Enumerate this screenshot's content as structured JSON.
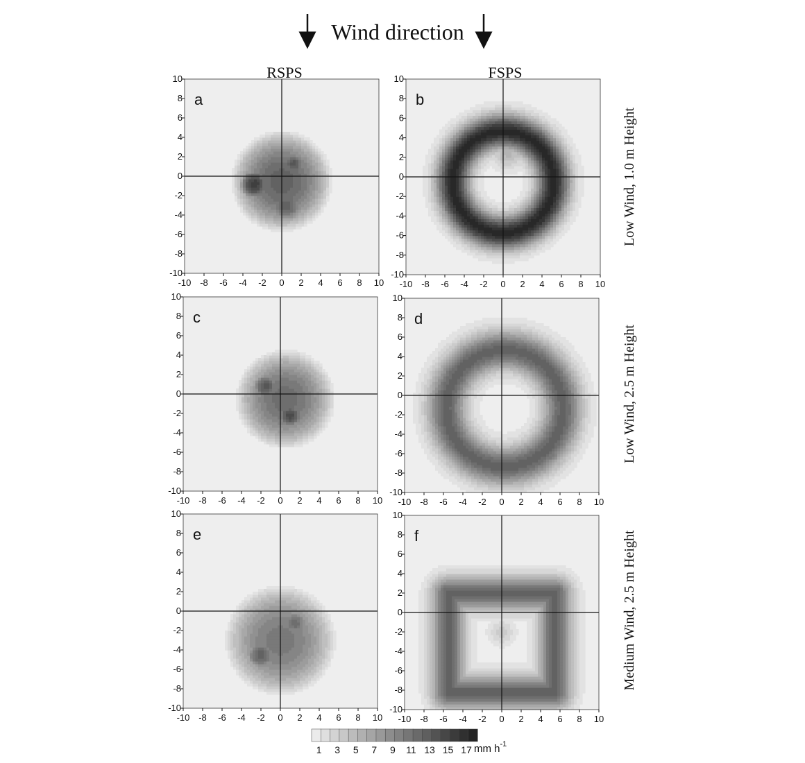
{
  "figure": {
    "header": "Wind direction",
    "column_titles": [
      "RSPS",
      "FSPS"
    ],
    "row_labels": [
      "Low Wind, 1.0 m Height",
      "Low Wind, 2.5 m Height",
      "Medium Wind, 2.5 m Height"
    ],
    "colorbar": {
      "ticks": [
        "1",
        "3",
        "5",
        "7",
        "9",
        "11",
        "13",
        "15",
        "17"
      ],
      "unit": "mm h",
      "unit_exponent": "-1",
      "levels": 18
    }
  },
  "chart_data": [
    {
      "type": "heatmap",
      "panel": "a",
      "xlim": [
        -10,
        10
      ],
      "ylim": [
        -10,
        10
      ],
      "xticks": [
        -10,
        -8,
        -6,
        -4,
        -2,
        0,
        2,
        4,
        6,
        8,
        10
      ],
      "yticks": [
        -10,
        -8,
        -6,
        -4,
        -2,
        0,
        2,
        4,
        6,
        8,
        10
      ],
      "shape": "disk",
      "blobs": [
        {
          "x": 0,
          "y": -0.5,
          "r": 5.3,
          "peak": 12
        },
        {
          "x": -2.8,
          "y": -0.8,
          "r": 1.8,
          "peak": 15
        },
        {
          "x": 1.2,
          "y": 1.3,
          "r": 1.3,
          "peak": 13
        },
        {
          "x": 0.5,
          "y": -3,
          "r": 2,
          "peak": 12
        }
      ]
    },
    {
      "type": "heatmap",
      "panel": "b",
      "xlim": [
        -10,
        10
      ],
      "ylim": [
        -10,
        10
      ],
      "xticks": [
        -10,
        -8,
        -6,
        -4,
        -2,
        0,
        2,
        4,
        6,
        8,
        10
      ],
      "yticks": [
        -10,
        -8,
        -6,
        -4,
        -2,
        0,
        2,
        4,
        6,
        8,
        10
      ],
      "shape": "ring",
      "ring": {
        "x": 0,
        "y": -0.5,
        "r": 5.2,
        "width": 1.2,
        "peak": 17
      },
      "blobs": [
        {
          "x": 0.5,
          "y": 2.5,
          "r": 1.8,
          "peak": 5
        }
      ]
    },
    {
      "type": "heatmap",
      "panel": "c",
      "xlim": [
        -10,
        10
      ],
      "ylim": [
        -10,
        10
      ],
      "xticks": [
        -10,
        -8,
        -6,
        -4,
        -2,
        0,
        2,
        4,
        6,
        8,
        10
      ],
      "yticks": [
        -10,
        -8,
        -6,
        -4,
        -2,
        0,
        2,
        4,
        6,
        8,
        10
      ],
      "shape": "disk",
      "blobs": [
        {
          "x": 0.5,
          "y": -0.5,
          "r": 5.2,
          "peak": 11
        },
        {
          "x": -1.5,
          "y": 0.8,
          "r": 1.6,
          "peak": 13
        },
        {
          "x": 1,
          "y": -2.2,
          "r": 1.5,
          "peak": 14
        }
      ]
    },
    {
      "type": "heatmap",
      "panel": "d",
      "xlim": [
        -10,
        10
      ],
      "ylim": [
        -10,
        10
      ],
      "xticks": [
        -10,
        -8,
        -6,
        -4,
        -2,
        0,
        2,
        4,
        6,
        8,
        10
      ],
      "yticks": [
        -10,
        -8,
        -6,
        -4,
        -2,
        0,
        2,
        4,
        6,
        8,
        10
      ],
      "shape": "ring",
      "ring": {
        "x": 0.3,
        "y": -1.3,
        "r": 6,
        "width": 1.4,
        "peak": 12
      },
      "blobs": []
    },
    {
      "type": "heatmap",
      "panel": "e",
      "xlim": [
        -10,
        10
      ],
      "ylim": [
        -10,
        10
      ],
      "xticks": [
        -10,
        -8,
        -6,
        -4,
        -2,
        0,
        2,
        4,
        6,
        8,
        10
      ],
      "yticks": [
        -10,
        -8,
        -6,
        -4,
        -2,
        0,
        2,
        4,
        6,
        8,
        10
      ],
      "shape": "disk",
      "blobs": [
        {
          "x": 0,
          "y": -3,
          "r": 5.8,
          "peak": 10
        },
        {
          "x": -2,
          "y": -4.5,
          "r": 1.8,
          "peak": 12
        },
        {
          "x": 1.5,
          "y": -1.2,
          "r": 1.6,
          "peak": 11
        }
      ]
    },
    {
      "type": "heatmap",
      "panel": "f",
      "xlim": [
        -10,
        10
      ],
      "ylim": [
        -10,
        10
      ],
      "xticks": [
        -10,
        -8,
        -6,
        -4,
        -2,
        0,
        2,
        4,
        6,
        8,
        10
      ],
      "yticks": [
        -10,
        -8,
        -6,
        -4,
        -2,
        0,
        2,
        4,
        6,
        8,
        10
      ],
      "shape": "frame",
      "frame": {
        "x0": -5.5,
        "x1": 5.5,
        "y0": -8.2,
        "y1": 2,
        "width": 1.2,
        "peak": 12
      },
      "blobs": [
        {
          "x": 0,
          "y": -2,
          "r": 1.5,
          "peak": 3
        }
      ]
    }
  ]
}
